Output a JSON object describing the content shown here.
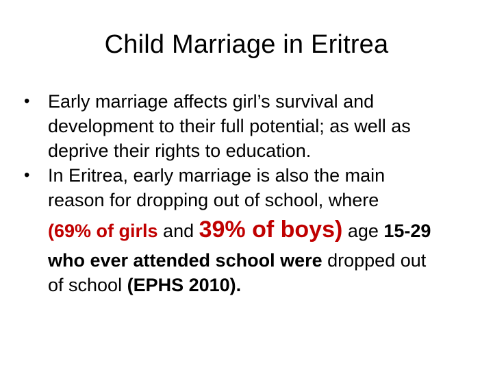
{
  "title": "Child Marriage in Eritrea",
  "bullets": [
    {
      "lines": [
        "Early marriage affects girl’s survival and",
        "development to their full potential; as well as",
        "deprive their rights to education."
      ]
    },
    {
      "lines": [
        "In Eritrea, early marriage is also the main",
        "reason for dropping out of school, where"
      ],
      "stat": {
        "open_paren": "(",
        "girls_stat": "69% of girls",
        "and_word": " and ",
        "boys_stat": "39% of boys",
        "close_paren": ")",
        "age_word": " age ",
        "age_range": "15-29"
      },
      "tail": {
        "attended": "who ever attended school were",
        "dropped": " dropped out",
        "of_school": "of school ",
        "source": "(EPHS 2010)."
      }
    }
  ],
  "colors": {
    "accent_red": "#c00000",
    "text": "#000000"
  },
  "bullet_icon": "bullet-dot-icon"
}
